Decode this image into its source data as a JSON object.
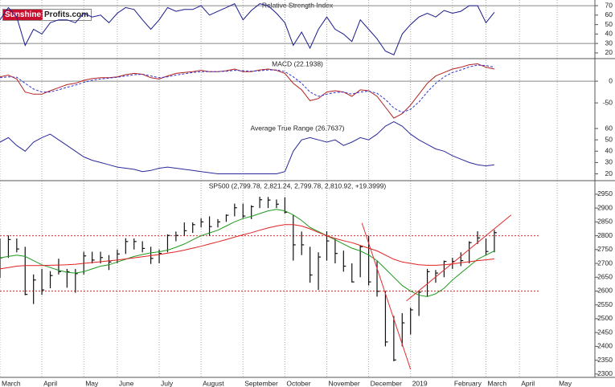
{
  "logo": {
    "brand": "Sunshine",
    "domain": "Profits.com"
  },
  "chart_data": [
    {
      "type": "line",
      "title": "Relative Strength Index",
      "ylim": [
        14,
        76
      ],
      "yticks": [
        20,
        30,
        40,
        50,
        60,
        70
      ],
      "reference_lines": [
        70,
        30
      ],
      "series": [
        {
          "color": "#1a1a8c",
          "values": [
            55,
            68,
            58,
            28,
            45,
            40,
            52,
            55,
            55,
            52,
            62,
            58,
            60,
            52,
            62,
            68,
            66,
            55,
            45,
            55,
            68,
            64,
            66,
            66,
            70,
            60,
            64,
            68,
            72,
            55,
            65,
            72,
            70,
            62,
            52,
            28,
            42,
            25,
            45,
            58,
            45,
            40,
            32,
            55,
            45,
            35,
            22,
            18,
            40,
            50,
            58,
            62,
            58,
            65,
            62,
            64,
            70,
            70,
            52,
            63
          ]
        }
      ]
    },
    {
      "type": "line",
      "title": "MACD (22.1938)",
      "ylim": [
        -96,
        52
      ],
      "yticks": [
        -50,
        0
      ],
      "reference_lines": [
        0
      ],
      "series": [
        {
          "color": "#b22222",
          "values": [
            10,
            14,
            5,
            -25,
            -30,
            -30,
            -22,
            -15,
            -8,
            -5,
            2,
            6,
            8,
            8,
            10,
            15,
            18,
            16,
            8,
            5,
            12,
            18,
            20,
            22,
            25,
            22,
            22,
            24,
            28,
            22,
            22,
            26,
            28,
            25,
            18,
            -5,
            -20,
            -45,
            -40,
            -25,
            -22,
            -25,
            -35,
            -20,
            -22,
            -35,
            -60,
            -85,
            -75,
            -55,
            -30,
            -5,
            12,
            20,
            28,
            32,
            38,
            40,
            32,
            28
          ]
        },
        {
          "color": "#3333cc",
          "dashed": true,
          "values": [
            8,
            10,
            9,
            -5,
            -18,
            -25,
            -25,
            -20,
            -14,
            -9,
            -3,
            2,
            5,
            7,
            9,
            12,
            15,
            16,
            12,
            8,
            10,
            14,
            17,
            20,
            22,
            22,
            22,
            23,
            25,
            24,
            23,
            24,
            26,
            26,
            22,
            10,
            -5,
            -25,
            -35,
            -30,
            -26,
            -25,
            -30,
            -25,
            -23,
            -28,
            -42,
            -62,
            -72,
            -65,
            -48,
            -25,
            -5,
            10,
            20,
            26,
            33,
            37,
            36,
            32
          ]
        }
      ]
    },
    {
      "type": "line",
      "title": "Average True Range (26.7637)",
      "ylim": [
        14,
        65
      ],
      "yticks": [
        20,
        30,
        40,
        50,
        60
      ],
      "series": [
        {
          "color": "#2a2a9a",
          "values": [
            48,
            52,
            45,
            40,
            48,
            52,
            55,
            50,
            45,
            40,
            35,
            32,
            30,
            28,
            26,
            25,
            24,
            22,
            23,
            25,
            26,
            25,
            24,
            23,
            22,
            21,
            20,
            20,
            20,
            20,
            20,
            20,
            20,
            20,
            22,
            40,
            50,
            52,
            50,
            48,
            50,
            45,
            48,
            52,
            50,
            55,
            62,
            66,
            62,
            55,
            50,
            46,
            42,
            40,
            36,
            33,
            30,
            28,
            27,
            28
          ]
        }
      ]
    },
    {
      "type": "ohlc",
      "title": "SP500 (2,799.78, 2,821.24, 2,799.78, 2,810.92, +19.3999)",
      "ylim": [
        2288,
        2999
      ],
      "yticks": [
        2300,
        2350,
        2400,
        2450,
        2500,
        2550,
        2600,
        2650,
        2700,
        2750,
        2800,
        2850,
        2900,
        2950
      ],
      "xlim": [
        0,
        71
      ],
      "xticks": [
        {
          "value": 0,
          "label": "March"
        },
        {
          "value": 5,
          "label": "April"
        },
        {
          "value": 10,
          "label": "May"
        },
        {
          "value": 14,
          "label": "June"
        },
        {
          "value": 19,
          "label": "July"
        },
        {
          "value": 24,
          "label": "August"
        },
        {
          "value": 29,
          "label": "September"
        },
        {
          "value": 34,
          "label": "October"
        },
        {
          "value": 39,
          "label": "November"
        },
        {
          "value": 44,
          "label": "December"
        },
        {
          "value": 49,
          "label": "2019"
        },
        {
          "value": 54,
          "label": "February"
        },
        {
          "value": 58,
          "label": "March"
        },
        {
          "value": 62,
          "label": "April"
        },
        {
          "value": 66.5,
          "label": "May"
        }
      ],
      "bar_color": "#111",
      "high": [
        2790,
        2801,
        2790,
        2760,
        2660,
        2680,
        2672,
        2717,
        2680,
        2680,
        2742,
        2742,
        2742,
        2730,
        2750,
        2791,
        2790,
        2780,
        2760,
        2750,
        2805,
        2815,
        2848,
        2848,
        2863,
        2870,
        2860,
        2877,
        2916,
        2916,
        2910,
        2941,
        2940,
        2931,
        2939,
        2875,
        2815,
        2760,
        2740,
        2816,
        2791,
        2746,
        2700,
        2765,
        2800,
        2708,
        2600,
        2510,
        2520,
        2540,
        2600,
        2680,
        2676,
        2710,
        2720,
        2740,
        2780,
        2816,
        2790,
        2821
      ],
      "low": [
        2647,
        2720,
        2740,
        2585,
        2553,
        2586,
        2610,
        2660,
        2612,
        2594,
        2660,
        2700,
        2700,
        2676,
        2700,
        2734,
        2750,
        2740,
        2698,
        2700,
        2740,
        2780,
        2800,
        2810,
        2830,
        2800,
        2830,
        2850,
        2870,
        2864,
        2860,
        2900,
        2900,
        2900,
        2880,
        2710,
        2730,
        2630,
        2604,
        2710,
        2700,
        2670,
        2631,
        2650,
        2620,
        2580,
        2400,
        2346,
        2400,
        2443,
        2510,
        2580,
        2630,
        2650,
        2680,
        2690,
        2700,
        2770,
        2730,
        2740
      ],
      "close": [
        2720,
        2786,
        2752,
        2588,
        2640,
        2604,
        2656,
        2670,
        2670,
        2663,
        2727,
        2712,
        2721,
        2705,
        2734,
        2779,
        2779,
        2754,
        2718,
        2736,
        2801,
        2801,
        2818,
        2840,
        2850,
        2833,
        2850,
        2874,
        2901,
        2871,
        2905,
        2930,
        2929,
        2914,
        2885,
        2767,
        2767,
        2658,
        2723,
        2781,
        2736,
        2690,
        2633,
        2760,
        2633,
        2599,
        2416,
        2351,
        2485,
        2532,
        2596,
        2670,
        2665,
        2707,
        2707,
        2710,
        2775,
        2792,
        2743,
        2811
      ],
      "series": [
        {
          "color": "#1f9a1f",
          "values": [
            2720,
            2725,
            2730,
            2725,
            2710,
            2695,
            2685,
            2675,
            2668,
            2665,
            2670,
            2680,
            2690,
            2695,
            2705,
            2715,
            2725,
            2732,
            2738,
            2742,
            2748,
            2758,
            2770,
            2785,
            2800,
            2810,
            2820,
            2835,
            2850,
            2862,
            2870,
            2880,
            2890,
            2895,
            2890,
            2875,
            2855,
            2830,
            2815,
            2800,
            2785,
            2770,
            2755,
            2745,
            2730,
            2710,
            2680,
            2650,
            2620,
            2600,
            2585,
            2580,
            2590,
            2610,
            2640,
            2665,
            2690,
            2715,
            2730,
            2745
          ]
        },
        {
          "color": "#e02020",
          "values": [
            2680,
            2685,
            2690,
            2692,
            2692,
            2692,
            2693,
            2694,
            2695,
            2697,
            2700,
            2703,
            2706,
            2709,
            2712,
            2716,
            2720,
            2724,
            2728,
            2732,
            2737,
            2742,
            2748,
            2755,
            2762,
            2770,
            2778,
            2786,
            2795,
            2803,
            2811,
            2820,
            2828,
            2835,
            2840,
            2840,
            2835,
            2825,
            2812,
            2800,
            2790,
            2782,
            2775,
            2765,
            2755,
            2745,
            2730,
            2715,
            2705,
            2700,
            2695,
            2693,
            2693,
            2695,
            2698,
            2702,
            2706,
            2710,
            2713,
            2716
          ]
        }
      ],
      "reference_lines": [
        2800,
        2600
      ],
      "reference_color": "#d03030",
      "trend_lines": [
        {
          "color": "#e03030",
          "x": [
            43.2,
            49
          ],
          "y": [
            2846,
            2317
          ]
        },
        {
          "color": "#e03030",
          "x": [
            48.5,
            61
          ],
          "y": [
            2564,
            2875
          ]
        }
      ]
    }
  ]
}
